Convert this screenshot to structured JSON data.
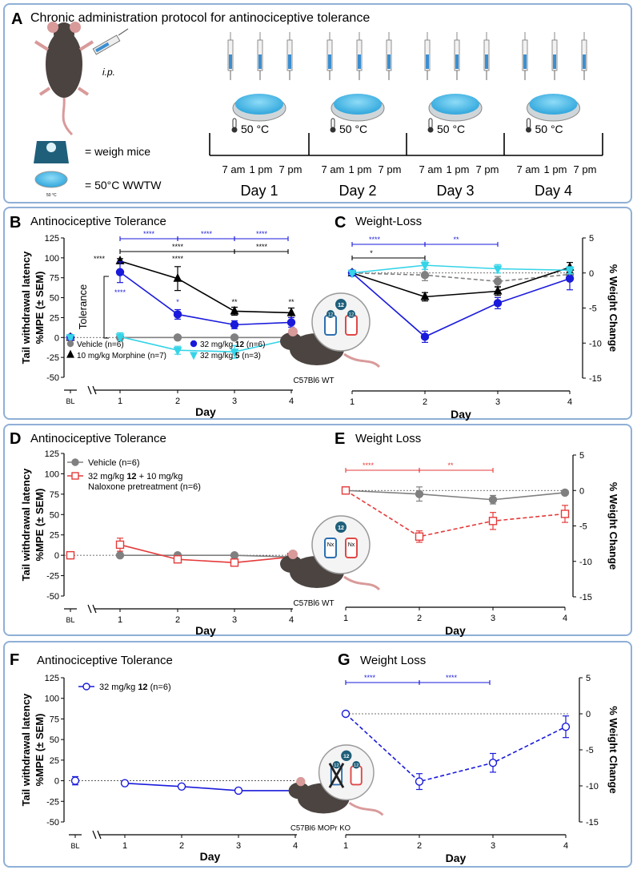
{
  "panelA": {
    "letter": "A",
    "title": "Chronic administration protocol for antinociceptive tolerance",
    "ip": "i.p.",
    "legend_weigh": "= weigh mice",
    "legend_wwtw": "= 50°C WWTW",
    "small_temp": "50 °C",
    "temp_label": "50 °C",
    "times": [
      "7 am",
      "1 pm",
      "7 pm"
    ],
    "days": [
      "Day 1",
      "Day 2",
      "Day 3",
      "Day 4"
    ],
    "colors": {
      "dish": "#5fc3ec",
      "scale": "#1f5f7a",
      "syringe": "#3b8fd1"
    }
  },
  "mice": {
    "wt": "C57Bl6 WT",
    "ko": "C57Bl6 MOPr KO",
    "drug_label": "12",
    "nx_label": "Nx"
  },
  "chart_data": [
    {
      "id": "B",
      "letter": "B",
      "type": "line",
      "title": "Antinociceptive Tolerance",
      "ylabel_lines": [
        "Tail withdrawal latency",
        "%MPE (± SEM)"
      ],
      "xlabel": "Day",
      "ylim": [
        -50,
        125
      ],
      "yticks": [
        -50,
        -25,
        0,
        25,
        50,
        75,
        100,
        125
      ],
      "x_categories": [
        "BL",
        "1",
        "2",
        "3",
        "4"
      ],
      "series": [
        {
          "name": "Vehicle (n=6)",
          "color": "#808080",
          "marker": "circle",
          "fill": true,
          "dash": false,
          "values": [
            0,
            0,
            0,
            0,
            0
          ],
          "err": [
            3,
            3,
            2,
            2,
            2
          ]
        },
        {
          "name": "10 mg/kg Morphine (n=7)",
          "color": "#000000",
          "marker": "triangle",
          "fill": true,
          "dash": false,
          "values": [
            0,
            96,
            74,
            33,
            31
          ],
          "err": [
            2,
            3,
            15,
            5,
            6
          ]
        },
        {
          "name": "32 mg/kg 12 (n=6)",
          "color": "#1a1adc",
          "marker": "circle",
          "fill": true,
          "dash": false,
          "values": [
            0,
            82,
            29,
            16,
            19
          ],
          "err": [
            2,
            13,
            6,
            5,
            6
          ]
        },
        {
          "name": "32 mg/kg 5 (n=3)",
          "color": "#35d4e8",
          "marker": "triangle-down",
          "fill": true,
          "dash": false,
          "values": [
            0,
            1,
            -16,
            -18,
            -2
          ],
          "err": [
            2,
            5,
            5,
            8,
            10
          ]
        }
      ],
      "legend_names": [
        "Vehicle (n=6)",
        "10 mg/kg Morphine (n=7)"
      ],
      "legend_b_prefix": "32 mg/kg ",
      "legend_b_bold": [
        "12",
        "5"
      ],
      "legend_b_suffix": [
        " (n=6)",
        " (n=3)"
      ],
      "tolerance_label": "Tolerance",
      "stars": {
        "s4": "****",
        "s2": "**",
        "s1": "*"
      }
    },
    {
      "id": "C",
      "letter": "C",
      "type": "line",
      "title": "Weight-Loss",
      "ylabel": "% Weight Change",
      "xlabel": "Day",
      "ylim": [
        -15,
        5
      ],
      "yticks": [
        -15,
        -10,
        -5,
        0,
        5
      ],
      "x_categories": [
        "1",
        "2",
        "3",
        "4"
      ],
      "series": [
        {
          "name": "Vehicle",
          "color": "#808080",
          "marker": "circle",
          "fill": true,
          "dash": true,
          "values": [
            0,
            -0.3,
            -1.2,
            -0.2
          ],
          "err": [
            0.3,
            0.8,
            0.7,
            0.4
          ]
        },
        {
          "name": "10 mg/kg Morphine",
          "color": "#000000",
          "marker": "triangle",
          "fill": true,
          "dash": false,
          "values": [
            0,
            -3.4,
            -2.6,
            0.8
          ],
          "err": [
            0.2,
            0.6,
            0.6,
            0.7
          ]
        },
        {
          "name": "32 mg/kg 12",
          "color": "#1a1adc",
          "marker": "circle",
          "fill": true,
          "dash": false,
          "values": [
            0,
            -9.1,
            -4.3,
            -0.8
          ],
          "err": [
            0.2,
            0.8,
            0.8,
            1.6
          ]
        },
        {
          "name": "32 mg/kg 5",
          "color": "#35d4e8",
          "marker": "triangle-down",
          "fill": true,
          "dash": false,
          "values": [
            0,
            1.1,
            0.6,
            0.4
          ],
          "err": [
            0.2,
            0.6,
            0.6,
            0.5
          ]
        }
      ],
      "stars": {
        "s4": "****",
        "s2": "**",
        "s1": "*"
      }
    },
    {
      "id": "D",
      "letter": "D",
      "type": "line",
      "title": "Antinociceptive Tolerance",
      "ylabel_lines": [
        "Tail withdrawal latency",
        "%MPE (± SEM)"
      ],
      "xlabel": "Day",
      "ylim": [
        -50,
        125
      ],
      "yticks": [
        -50,
        -25,
        0,
        25,
        50,
        75,
        100,
        125
      ],
      "x_categories": [
        "BL",
        "1",
        "2",
        "3",
        "4"
      ],
      "series": [
        {
          "name": "Vehicle (n=6)",
          "color": "#808080",
          "marker": "circle",
          "fill": true,
          "dash": false,
          "values": [
            0,
            0,
            0,
            0,
            -2
          ],
          "err": [
            2,
            2,
            2,
            2,
            2
          ]
        },
        {
          "name": "32 mg/kg 12 + 10 mg/kg Naloxone pretreatment (n=6)",
          "color": "#e53a3a",
          "marker": "square",
          "fill": false,
          "dash": false,
          "values": [
            0,
            13,
            -5,
            -9,
            -2
          ],
          "err": [
            2,
            8,
            3,
            3,
            2
          ]
        }
      ],
      "legend_vehicle": "Vehicle (n=6)",
      "legend_red_a": "32 mg/kg ",
      "legend_red_bold": "12",
      "legend_red_b": " + 10 mg/kg",
      "legend_red_line2": "Naloxone pretreatment (n=6)"
    },
    {
      "id": "E",
      "letter": "E",
      "type": "line",
      "title": "Weight Loss",
      "ylabel": "% Weight Change",
      "xlabel": "Day",
      "ylim": [
        -15,
        5
      ],
      "yticks": [
        -15,
        -10,
        -5,
        0,
        5
      ],
      "x_categories": [
        "1",
        "2",
        "3",
        "4"
      ],
      "series": [
        {
          "name": "Vehicle",
          "color": "#808080",
          "marker": "circle",
          "fill": true,
          "dash": false,
          "values": [
            0,
            -0.5,
            -1.3,
            -0.3
          ],
          "err": [
            0.2,
            1.0,
            0.6,
            0.3
          ]
        },
        {
          "name": "32 mg/kg 12 + Naloxone",
          "color": "#e53a3a",
          "marker": "square",
          "fill": false,
          "dash": true,
          "values": [
            0,
            -6.5,
            -4.3,
            -3.3
          ],
          "err": [
            0.2,
            0.8,
            1.2,
            1.2
          ]
        }
      ],
      "stars": {
        "s4": "****",
        "s2": "**"
      }
    },
    {
      "id": "F",
      "letter": "F",
      "type": "line",
      "title": "Antinociceptive Tolerance",
      "ylabel_lines": [
        "Tail withdrawal latency",
        "%MPE (± SEM)"
      ],
      "xlabel": "Day",
      "ylim": [
        -50,
        125
      ],
      "yticks": [
        -50,
        -25,
        0,
        25,
        50,
        75,
        100,
        125
      ],
      "x_categories": [
        "BL",
        "1",
        "2",
        "3",
        "4"
      ],
      "series": [
        {
          "name": "32 mg/kg 12 (n=6)",
          "color": "#1a1adc",
          "marker": "circle",
          "fill": false,
          "dash": false,
          "values": [
            0,
            -3,
            -7,
            -12,
            -12
          ],
          "err": [
            5,
            2,
            2,
            2,
            6
          ]
        }
      ],
      "legend_a": "32 mg/kg ",
      "legend_bold": "12",
      "legend_b": " (n=6)"
    },
    {
      "id": "G",
      "letter": "G",
      "type": "line",
      "title": "Weight Loss",
      "ylabel": "% Weight Change",
      "xlabel": "Day",
      "ylim": [
        -15,
        5
      ],
      "yticks": [
        -15,
        -10,
        -5,
        0,
        5
      ],
      "x_categories": [
        "1",
        "2",
        "3",
        "4"
      ],
      "series": [
        {
          "name": "32 mg/kg 12",
          "color": "#1a1adc",
          "marker": "circle",
          "fill": false,
          "dash": true,
          "values": [
            0,
            -9.4,
            -6.8,
            -1.8
          ],
          "err": [
            0.2,
            1.1,
            1.3,
            1.5
          ]
        }
      ],
      "stars": {
        "s4": "****"
      }
    }
  ]
}
